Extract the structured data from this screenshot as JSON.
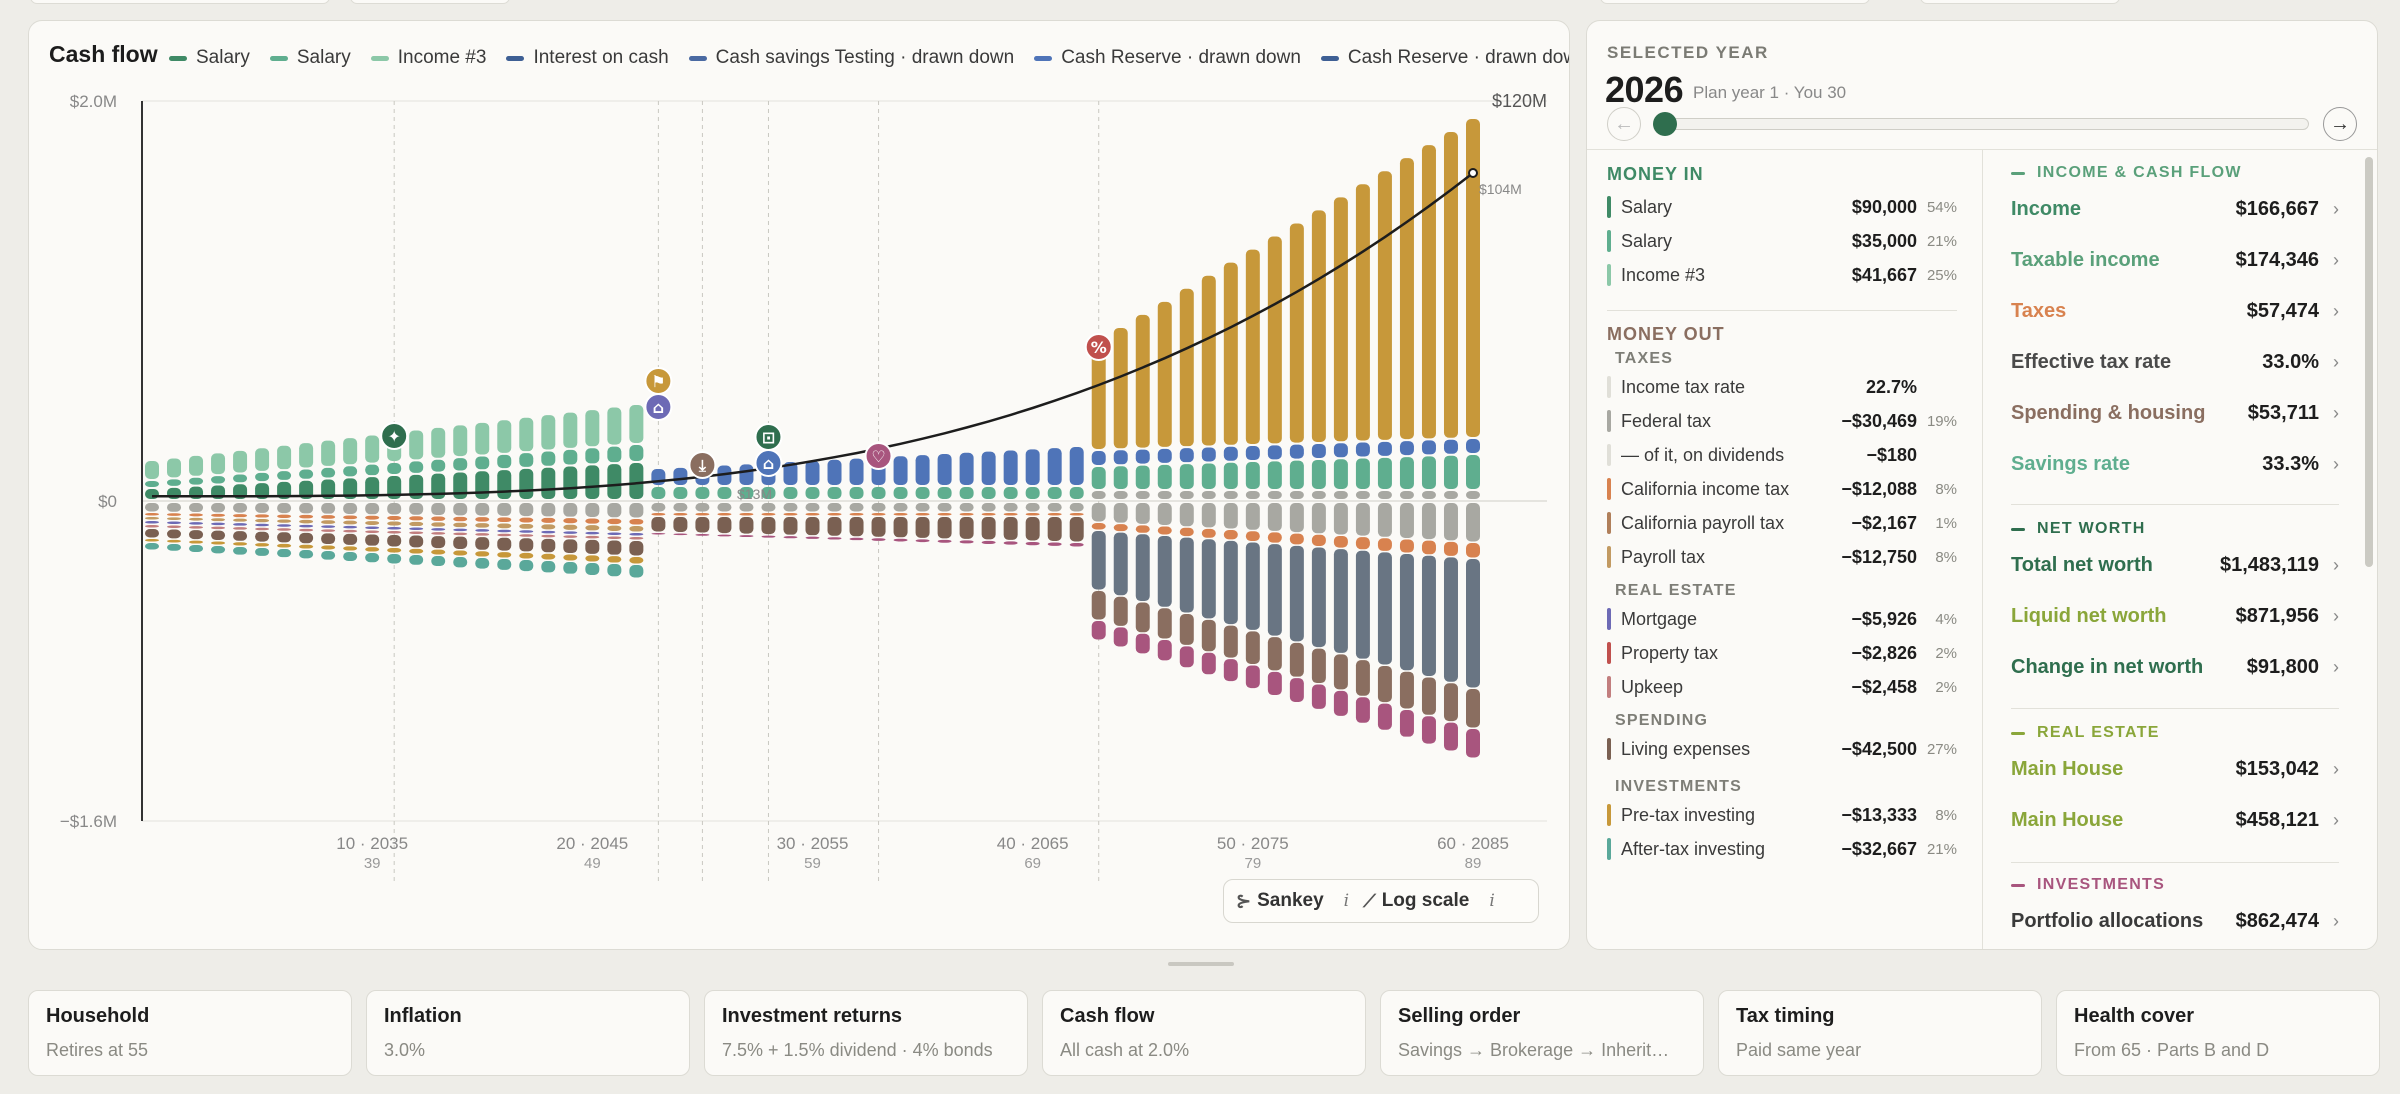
{
  "chart": {
    "title": "Cash flow",
    "legend": [
      {
        "label": "Salary",
        "color": "#3f8a66"
      },
      {
        "label": "Salary",
        "color": "#5fae8f"
      },
      {
        "label": "Income #3",
        "color": "#8cc8a8"
      },
      {
        "label": "Interest on cash",
        "color": "#3e5f94"
      },
      {
        "label": "Cash savings Testing · drawn down",
        "color": "#4a6aa2"
      },
      {
        "label": "Cash Reserve · drawn down",
        "color": "#4f74b8"
      },
      {
        "label": "Cash Reserve · drawn down",
        "color": "#3e5f94"
      }
    ],
    "legend_more": "·",
    "controls": {
      "sankey": "Sankey",
      "log_scale": "Log scale",
      "info": "i"
    },
    "net_worth_labels": [
      "$13M",
      "$104M"
    ]
  },
  "chart_data": {
    "type": "bar",
    "y_left_ticks": [
      "$2.0M",
      "$0",
      "−$1.6M"
    ],
    "y_right_ticks": [
      "$120M"
    ],
    "ylim_left": [
      -1600000,
      2000000
    ],
    "ylim_right": [
      0,
      120000000
    ],
    "x_ticks": [
      {
        "label": "10 · 2035",
        "age": "39",
        "year_index": 10
      },
      {
        "label": "20 · 2045",
        "age": "49",
        "year_index": 20
      },
      {
        "label": "30 · 2055",
        "age": "59",
        "year_index": 30
      },
      {
        "label": "40 · 2065",
        "age": "69",
        "year_index": 40
      },
      {
        "label": "50 · 2075",
        "age": "79",
        "year_index": 50
      },
      {
        "label": "60 · 2085",
        "age": "89",
        "year_index": 60
      }
    ],
    "years": 60,
    "series": [
      {
        "name": "Salary",
        "kind": "income",
        "values_phase": {
          "working_start": 90000,
          "working_end": 180000
        }
      },
      {
        "name": "Salary",
        "kind": "income",
        "values_phase": {
          "working_start": 35000,
          "working_end": 70000
        }
      },
      {
        "name": "Income #3",
        "kind": "income",
        "values_phase": {
          "working_start": 41667,
          "working_end": 80000
        }
      }
    ],
    "net_worth_line": {
      "start": 1483119,
      "mid": 13000000,
      "end": 104000000
    },
    "event_markers": [
      {
        "year_index": 11,
        "icon": "star-icon",
        "color": "#2f6e4e"
      },
      {
        "year_index": 23,
        "icon": "flag-icon",
        "color": "#c7983a"
      },
      {
        "year_index": 23,
        "icon": "house-icon",
        "color": "#6d6ab5"
      },
      {
        "year_index": 25,
        "icon": "download-icon",
        "color": "#8a6e60"
      },
      {
        "year_index": 28,
        "icon": "unlock-icon",
        "color": "#2f6e4e"
      },
      {
        "year_index": 28,
        "icon": "house-icon",
        "color": "#4f74b8"
      },
      {
        "year_index": 33,
        "icon": "heart-icon",
        "color": "#a8557e"
      },
      {
        "year_index": 43,
        "icon": "percent-icon",
        "color": "#c0504d"
      }
    ],
    "vertical_guides": [
      11,
      23,
      25,
      28,
      33,
      43
    ]
  },
  "side": {
    "selected_label": "SELECTED YEAR",
    "year": "2026",
    "year_sub": "Plan year 1 · You 30",
    "slider_progress": 0.0,
    "money_in": {
      "title": "MONEY IN",
      "rows": [
        {
          "label": "Salary",
          "value": "$90,000",
          "pct": "54%",
          "color": "#3f8a66"
        },
        {
          "label": "Salary",
          "value": "$35,000",
          "pct": "21%",
          "color": "#5fae8f"
        },
        {
          "label": "Income #3",
          "value": "$41,667",
          "pct": "25%",
          "color": "#8cc8a8"
        }
      ]
    },
    "money_out": {
      "title": "MONEY OUT",
      "taxes_title": "TAXES",
      "taxes": [
        {
          "label": "Income tax rate",
          "value": "22.7%",
          "pct": "",
          "color": "#e0dfd8"
        },
        {
          "label": "Federal tax",
          "value": "−$30,469",
          "pct": "19%",
          "color": "#a8a8a2"
        },
        {
          "label": "— of it, on dividends",
          "value": "−$180",
          "pct": "",
          "color": "#e0dfd8"
        },
        {
          "label": "California income tax",
          "value": "−$12,088",
          "pct": "8%",
          "color": "#d8824f"
        },
        {
          "label": "California payroll tax",
          "value": "−$2,167",
          "pct": "1%",
          "color": "#b07f5a"
        },
        {
          "label": "Payroll tax",
          "value": "−$12,750",
          "pct": "8%",
          "color": "#c29a62"
        }
      ],
      "real_estate_title": "REAL ESTATE",
      "real_estate": [
        {
          "label": "Mortgage",
          "value": "−$5,926",
          "pct": "4%",
          "color": "#6d6ab5"
        },
        {
          "label": "Property tax",
          "value": "−$2,826",
          "pct": "2%",
          "color": "#c0504d"
        },
        {
          "label": "Upkeep",
          "value": "−$2,458",
          "pct": "2%",
          "color": "#c27e7e"
        }
      ],
      "spending_title": "SPENDING",
      "spending": [
        {
          "label": "Living expenses",
          "value": "−$42,500",
          "pct": "27%",
          "color": "#7a6052"
        }
      ],
      "investments_title": "INVESTMENTS",
      "investments": [
        {
          "label": "Pre-tax investing",
          "value": "−$13,333",
          "pct": "8%",
          "color": "#c7983a"
        },
        {
          "label": "After-tax investing",
          "value": "−$32,667",
          "pct": "21%",
          "color": "#5aa89a"
        }
      ]
    },
    "income_cash_flow": {
      "title": "INCOME & CASH FLOW",
      "rows": [
        {
          "label": "Income",
          "value": "$166,667",
          "color": "#3f8a66"
        },
        {
          "label": "Taxable income",
          "value": "$174,346",
          "color": "#5aa07a"
        },
        {
          "label": "Taxes",
          "value": "$57,474",
          "color": "#d8824f"
        },
        {
          "label": "Effective tax rate",
          "value": "33.0%",
          "color": "#4a4a4a"
        },
        {
          "label": "Spending & housing",
          "value": "$53,711",
          "color": "#8a6e60"
        },
        {
          "label": "Savings rate",
          "value": "33.3%",
          "color": "#5fae8f"
        }
      ]
    },
    "net_worth": {
      "title": "NET WORTH",
      "rows": [
        {
          "label": "Total net worth",
          "value": "$1,483,119",
          "color": "#2f6e4e"
        },
        {
          "label": "Liquid net worth",
          "value": "$871,956",
          "color": "#8aa63a"
        },
        {
          "label": "Change in net worth",
          "value": "$91,800",
          "color": "#2f6e4e"
        }
      ]
    },
    "real_estate": {
      "title": "REAL ESTATE",
      "rows": [
        {
          "label": "Main House",
          "value": "$153,042",
          "color": "#8aa63a"
        },
        {
          "label": "Main House",
          "value": "$458,121",
          "color": "#8aa63a"
        }
      ]
    },
    "investments": {
      "title": "INVESTMENTS",
      "rows": [
        {
          "label": "Portfolio allocations",
          "value": "$862,474",
          "color": "#3a3a3a"
        }
      ]
    }
  },
  "bottom_cards": [
    {
      "title": "Household",
      "sub": "Retires at 55"
    },
    {
      "title": "Inflation",
      "sub": "3.0%"
    },
    {
      "title": "Investment returns",
      "sub": "7.5% + 1.5% dividend · 4% bonds"
    },
    {
      "title": "Cash flow",
      "sub": "All cash at 2.0%"
    },
    {
      "title": "Selling order",
      "sub": "Savings → Brokerage → Inherit…"
    },
    {
      "title": "Tax timing",
      "sub": "Paid same year"
    },
    {
      "title": "Health cover",
      "sub": "From 65 · Parts B and D"
    }
  ],
  "colors": {
    "accent_green": "#2f6e4e",
    "income_head": "#3f8a66",
    "out_head": "#8a6e60",
    "realestate_head": "#8aa63a",
    "invest_head": "#a8557e"
  }
}
